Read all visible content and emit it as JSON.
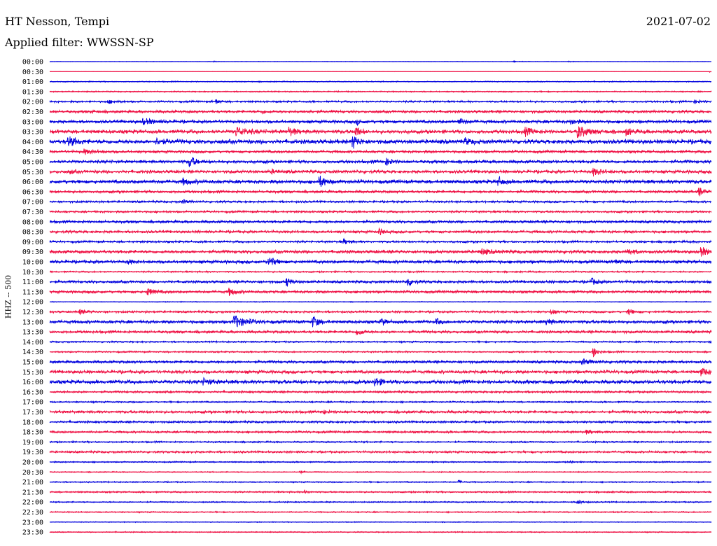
{
  "header": {
    "station": "HT Nesson, Tempi",
    "date": "2021-07-02",
    "filter": "Applied filter: WWSSN-SP"
  },
  "chart_data": {
    "type": "line",
    "title": "HT Nesson, Tempi",
    "date": "2021-07-02",
    "filter": "WWSSN-SP",
    "ylabel": "HHZ -- 500",
    "x_unit": "minutes within 30-minute row",
    "xlim": [
      0,
      30
    ],
    "grid": false,
    "colors": {
      "even_rows": "#0000dd",
      "odd_rows": "#ee1144"
    },
    "rows": [
      {
        "label": "00:00",
        "color": "#0000dd",
        "noise": 0.05,
        "events": [
          [
            7.4,
            0.12,
            0.4
          ],
          [
            21,
            0.1,
            0.4
          ],
          [
            23.5,
            0.1,
            0.4
          ]
        ]
      },
      {
        "label": "00:30",
        "color": "#ee1144",
        "noise": 0.03,
        "events": [
          [
            29.9,
            0.2,
            0.1
          ]
        ]
      },
      {
        "label": "01:00",
        "color": "#0000dd",
        "noise": 0.1,
        "events": []
      },
      {
        "label": "01:30",
        "color": "#ee1144",
        "noise": 0.12,
        "events": []
      },
      {
        "label": "02:00",
        "color": "#0000dd",
        "noise": 0.18,
        "events": [
          [
            2.6,
            0.35,
            0.6
          ],
          [
            7.5,
            0.7,
            0.2
          ],
          [
            29.2,
            0.35,
            0.5
          ]
        ]
      },
      {
        "label": "02:30",
        "color": "#ee1144",
        "noise": 0.25,
        "events": [
          [
            1.9,
            0.4,
            0.2
          ],
          [
            9.6,
            0.35,
            0.3
          ],
          [
            11.5,
            0.3,
            0.6
          ]
        ]
      },
      {
        "label": "03:00",
        "color": "#0000dd",
        "noise": 0.3,
        "events": [
          [
            4.2,
            0.6,
            0.8
          ],
          [
            13.9,
            0.55,
            0.3
          ],
          [
            18.5,
            0.6,
            0.5
          ],
          [
            23.6,
            0.6,
            0.5
          ]
        ]
      },
      {
        "label": "03:30",
        "color": "#ee1144",
        "noise": 0.35,
        "events": [
          [
            8.4,
            1.0,
            0.8
          ],
          [
            10.8,
            0.9,
            0.5
          ],
          [
            13.8,
            1.6,
            0.3
          ],
          [
            21.5,
            0.8,
            0.6
          ],
          [
            23.9,
            1.3,
            0.7
          ],
          [
            26.1,
            0.8,
            0.4
          ]
        ]
      },
      {
        "label": "04:00",
        "color": "#0000dd",
        "noise": 0.4,
        "events": [
          [
            0.8,
            1.0,
            0.6
          ],
          [
            4.8,
            0.6,
            0.6
          ],
          [
            13.7,
            1.7,
            0.35
          ],
          [
            18.8,
            0.6,
            0.5
          ]
        ]
      },
      {
        "label": "04:30",
        "color": "#ee1144",
        "noise": 0.25,
        "events": [
          [
            1.5,
            0.5,
            0.8
          ]
        ]
      },
      {
        "label": "05:00",
        "color": "#0000dd",
        "noise": 0.3,
        "events": [
          [
            6.3,
            1.4,
            0.4
          ],
          [
            15.2,
            0.8,
            0.4
          ]
        ]
      },
      {
        "label": "05:30",
        "color": "#ee1144",
        "noise": 0.3,
        "events": [
          [
            0.9,
            0.5,
            0.2
          ],
          [
            10,
            0.4,
            0.4
          ],
          [
            24.6,
            0.8,
            0.5
          ]
        ]
      },
      {
        "label": "06:00",
        "color": "#0000dd",
        "noise": 0.35,
        "events": [
          [
            6,
            0.6,
            0.6
          ],
          [
            12.2,
            1.3,
            0.4
          ],
          [
            20.3,
            1.2,
            0.3
          ]
        ]
      },
      {
        "label": "06:30",
        "color": "#ee1144",
        "noise": 0.25,
        "events": [
          [
            29.4,
            1.1,
            0.3
          ]
        ]
      },
      {
        "label": "07:00",
        "color": "#0000dd",
        "noise": 0.2,
        "events": [
          [
            6,
            0.5,
            0.3
          ]
        ]
      },
      {
        "label": "07:30",
        "color": "#ee1144",
        "noise": 0.2,
        "events": []
      },
      {
        "label": "08:00",
        "color": "#0000dd",
        "noise": 0.25,
        "events": []
      },
      {
        "label": "08:30",
        "color": "#ee1144",
        "noise": 0.25,
        "events": [
          [
            14.9,
            0.8,
            0.3
          ]
        ]
      },
      {
        "label": "09:00",
        "color": "#0000dd",
        "noise": 0.2,
        "events": [
          [
            13.3,
            0.6,
            0.4
          ]
        ]
      },
      {
        "label": "09:30",
        "color": "#ee1144",
        "noise": 0.3,
        "events": [
          [
            19.5,
            0.6,
            0.8
          ],
          [
            26.2,
            0.8,
            0.4
          ],
          [
            29.5,
            1.0,
            0.5
          ]
        ]
      },
      {
        "label": "10:00",
        "color": "#0000dd",
        "noise": 0.3,
        "events": [
          [
            3.5,
            0.5,
            0.3
          ],
          [
            9.9,
            1.3,
            0.4
          ],
          [
            25.6,
            0.4,
            0.4
          ]
        ]
      },
      {
        "label": "10:30",
        "color": "#ee1144",
        "noise": 0.15,
        "events": []
      },
      {
        "label": "11:00",
        "color": "#0000dd",
        "noise": 0.25,
        "events": [
          [
            10.7,
            1.1,
            0.3
          ],
          [
            16.2,
            1.3,
            0.3
          ],
          [
            24.5,
            0.8,
            0.4
          ]
        ]
      },
      {
        "label": "11:30",
        "color": "#ee1144",
        "noise": 0.25,
        "events": [
          [
            4.4,
            0.8,
            0.5
          ],
          [
            8.1,
            0.8,
            0.5
          ]
        ]
      },
      {
        "label": "12:00",
        "color": "#0000dd",
        "noise": 0.08,
        "events": []
      },
      {
        "label": "12:30",
        "color": "#ee1144",
        "noise": 0.2,
        "events": [
          [
            1.3,
            0.5,
            0.5
          ],
          [
            22.7,
            0.6,
            0.3
          ],
          [
            26.2,
            0.8,
            0.3
          ]
        ]
      },
      {
        "label": "13:00",
        "color": "#0000dd",
        "noise": 0.3,
        "events": [
          [
            8.3,
            1.5,
            0.8
          ],
          [
            11.9,
            1.3,
            0.4
          ],
          [
            15,
            0.9,
            0.3
          ],
          [
            17.5,
            0.6,
            0.3
          ],
          [
            22.5,
            0.9,
            0.3
          ]
        ]
      },
      {
        "label": "13:30",
        "color": "#ee1144",
        "noise": 0.25,
        "events": [
          [
            13.9,
            1.0,
            0.3
          ]
        ]
      },
      {
        "label": "14:00",
        "color": "#0000dd",
        "noise": 0.15,
        "events": []
      },
      {
        "label": "14:30",
        "color": "#ee1144",
        "noise": 0.15,
        "events": [
          [
            24.6,
            1.3,
            0.3
          ]
        ]
      },
      {
        "label": "15:00",
        "color": "#0000dd",
        "noise": 0.25,
        "events": [
          [
            24.1,
            0.6,
            0.6
          ]
        ]
      },
      {
        "label": "15:30",
        "color": "#ee1144",
        "noise": 0.3,
        "events": [
          [
            29.5,
            0.9,
            0.6
          ]
        ]
      },
      {
        "label": "16:00",
        "color": "#0000dd",
        "noise": 0.35,
        "events": [
          [
            6.9,
            0.6,
            0.6
          ],
          [
            14.7,
            1.2,
            0.4
          ]
        ]
      },
      {
        "label": "16:30",
        "color": "#ee1144",
        "noise": 0.2,
        "events": []
      },
      {
        "label": "17:00",
        "color": "#0000dd",
        "noise": 0.15,
        "events": []
      },
      {
        "label": "17:30",
        "color": "#ee1144",
        "noise": 0.25,
        "events": [
          [
            12.3,
            0.5,
            0.4
          ]
        ]
      },
      {
        "label": "18:00",
        "color": "#0000dd",
        "noise": 0.2,
        "events": []
      },
      {
        "label": "18:30",
        "color": "#ee1144",
        "noise": 0.2,
        "events": [
          [
            24.3,
            0.4,
            0.4
          ]
        ]
      },
      {
        "label": "19:00",
        "color": "#0000dd",
        "noise": 0.15,
        "events": []
      },
      {
        "label": "19:30",
        "color": "#ee1144",
        "noise": 0.2,
        "events": []
      },
      {
        "label": "20:00",
        "color": "#0000dd",
        "noise": 0.12,
        "events": [
          [
            23.6,
            0.6,
            0.1
          ]
        ]
      },
      {
        "label": "20:30",
        "color": "#ee1144",
        "noise": 0.1,
        "events": [
          [
            11.3,
            0.4,
            0.2
          ]
        ]
      },
      {
        "label": "21:00",
        "color": "#0000dd",
        "noise": 0.12,
        "events": [
          [
            18.5,
            0.4,
            0.2
          ]
        ]
      },
      {
        "label": "21:30",
        "color": "#ee1144",
        "noise": 0.15,
        "events": [
          [
            11.5,
            0.4,
            0.3
          ]
        ]
      },
      {
        "label": "22:00",
        "color": "#0000dd",
        "noise": 0.12,
        "events": [
          [
            23.9,
            0.5,
            0.4
          ]
        ]
      },
      {
        "label": "22:30",
        "color": "#ee1144",
        "noise": 0.12,
        "events": []
      },
      {
        "label": "23:00",
        "color": "#0000dd",
        "noise": 0.08,
        "events": []
      },
      {
        "label": "23:30",
        "color": "#ee1144",
        "noise": 0.1,
        "events": []
      }
    ]
  }
}
